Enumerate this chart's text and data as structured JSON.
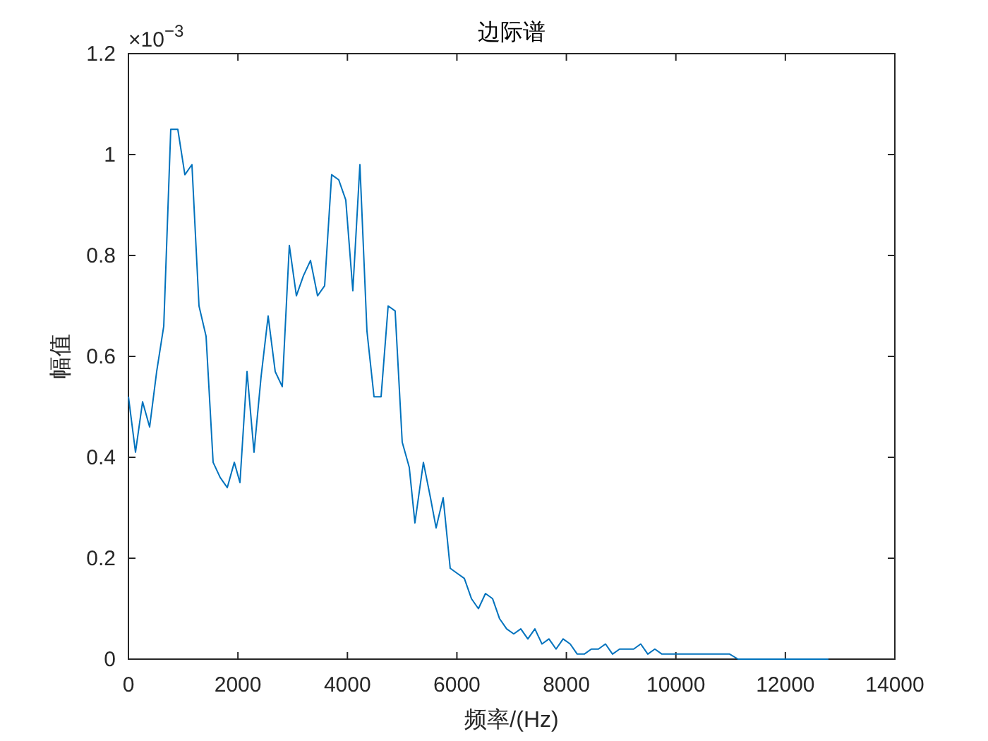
{
  "chart_data": {
    "type": "line",
    "title": "边际谱",
    "xlabel": "频率/(Hz)",
    "ylabel": "幅值",
    "annotations": [
      "×10$^{−3}$"
    ],
    "xlim": [
      0,
      14000
    ],
    "xticks": [
      0,
      2000,
      4000,
      6000,
      8000,
      10000,
      12000,
      14000
    ],
    "ylim": [
      0,
      1.2
    ],
    "yticks": [
      0,
      0.2,
      0.4,
      0.6,
      0.8,
      1,
      1.2
    ],
    "grid": false,
    "series": [
      {
        "color": "#0072bd",
        "x": [
          0,
          129,
          258,
          387,
          516,
          645,
          773,
          902,
          1031,
          1160,
          1289,
          1418,
          1547,
          1676,
          1805,
          1934,
          2037,
          2166,
          2294,
          2423,
          2552,
          2681,
          2810,
          2939,
          3068,
          3197,
          3326,
          3455,
          3584,
          3712,
          3841,
          3970,
          4099,
          4228,
          4357,
          4486,
          4615,
          4744,
          4872,
          5001,
          5130,
          5233,
          5388,
          5517,
          5620,
          5749,
          5878,
          6007,
          6136,
          6265,
          6393,
          6522,
          6651,
          6780,
          6909,
          7038,
          7167,
          7296,
          7425,
          7554,
          7682,
          7811,
          7940,
          8069,
          8198,
          8327,
          8456,
          8585,
          8714,
          8843,
          8972,
          9101,
          9229,
          9358,
          9487,
          9616,
          9745,
          9848,
          9977,
          10106,
          10235,
          10364,
          10493,
          10621,
          10802,
          10982,
          11137,
          11318,
          11575,
          11833,
          12168,
          12529,
          12787
        ],
        "values": [
          0.52,
          0.41,
          0.51,
          0.46,
          0.57,
          0.66,
          1.05,
          1.05,
          0.96,
          0.98,
          0.7,
          0.64,
          0.39,
          0.36,
          0.34,
          0.39,
          0.35,
          0.57,
          0.41,
          0.56,
          0.68,
          0.57,
          0.54,
          0.82,
          0.72,
          0.76,
          0.79,
          0.72,
          0.74,
          0.96,
          0.95,
          0.91,
          0.73,
          0.98,
          0.65,
          0.52,
          0.52,
          0.7,
          0.69,
          0.43,
          0.38,
          0.27,
          0.39,
          0.32,
          0.26,
          0.32,
          0.18,
          0.17,
          0.16,
          0.12,
          0.1,
          0.13,
          0.12,
          0.08,
          0.06,
          0.05,
          0.06,
          0.04,
          0.06,
          0.03,
          0.04,
          0.02,
          0.04,
          0.03,
          0.01,
          0.01,
          0.02,
          0.02,
          0.03,
          0.01,
          0.02,
          0.02,
          0.02,
          0.03,
          0.01,
          0.02,
          0.01,
          0.01,
          0.01,
          0.01,
          0.01,
          0.01,
          0.01,
          0.01,
          0.01,
          0.01,
          0,
          0,
          0,
          0,
          0,
          0,
          0
        ]
      }
    ]
  }
}
